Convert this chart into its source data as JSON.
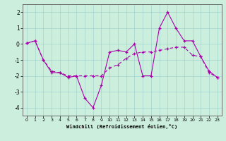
{
  "xlabel": "Windchill (Refroidissement éolien,°C)",
  "bg_color": "#cceedd",
  "line_color": "#aa00aa",
  "x": [
    0,
    1,
    2,
    3,
    4,
    5,
    6,
    7,
    8,
    9,
    10,
    11,
    12,
    13,
    14,
    15,
    16,
    17,
    18,
    19,
    20,
    21,
    22,
    23
  ],
  "series1": [
    0.05,
    0.2,
    -1.0,
    -1.8,
    -1.8,
    -2.1,
    -2.0,
    -3.4,
    -4.0,
    -2.6,
    -0.5,
    -0.4,
    -0.5,
    0.0,
    -2.0,
    -2.0,
    1.0,
    2.0,
    1.0,
    0.2,
    0.2,
    -0.8,
    -1.7,
    -2.1
  ],
  "series2": [
    0.05,
    0.2,
    -1.0,
    -1.7,
    -1.8,
    -2.0,
    -2.0,
    -2.0,
    -2.0,
    -2.0,
    -1.5,
    -1.3,
    -0.9,
    -0.6,
    -0.5,
    -0.5,
    -0.4,
    -0.3,
    -0.2,
    -0.2,
    -0.7,
    -0.8,
    -1.8,
    -2.1
  ],
  "ylim": [
    -4.5,
    2.5
  ],
  "xlim": [
    -0.5,
    23.5
  ],
  "yticks": [
    -4,
    -3,
    -2,
    -1,
    0,
    1,
    2
  ],
  "xticks": [
    0,
    1,
    2,
    3,
    4,
    5,
    6,
    7,
    8,
    9,
    10,
    11,
    12,
    13,
    14,
    15,
    16,
    17,
    18,
    19,
    20,
    21,
    22,
    23
  ]
}
